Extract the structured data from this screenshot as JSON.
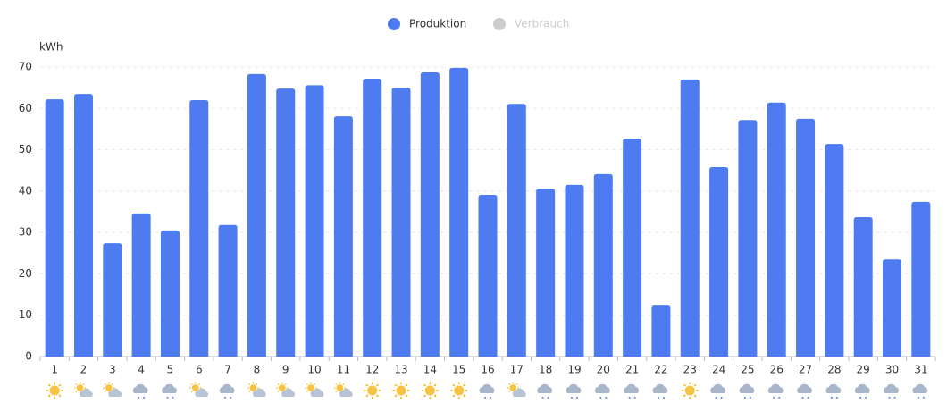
{
  "chart_data": {
    "type": "bar",
    "y_label": "kWh",
    "categories": [
      "1",
      "2",
      "3",
      "4",
      "5",
      "6",
      "7",
      "8",
      "9",
      "10",
      "11",
      "12",
      "13",
      "14",
      "15",
      "16",
      "17",
      "18",
      "19",
      "20",
      "21",
      "22",
      "23",
      "24",
      "25",
      "26",
      "27",
      "28",
      "29",
      "30",
      "31"
    ],
    "series": [
      {
        "name": "Produktion",
        "color": "#4e7cf0",
        "values": [
          62.2,
          63.5,
          27.4,
          34.6,
          30.5,
          62.0,
          31.8,
          68.3,
          64.8,
          65.6,
          58.1,
          67.2,
          65.0,
          68.7,
          69.8,
          39.1,
          61.1,
          40.6,
          41.5,
          44.1,
          52.7,
          12.5,
          67.0,
          45.8,
          57.2,
          61.4,
          57.5,
          51.4,
          33.7,
          23.5,
          37.4
        ]
      }
    ],
    "inactive_series": [
      {
        "name": "Verbrauch",
        "color": "#cccccc"
      }
    ],
    "weather": [
      "sun",
      "partly",
      "partly",
      "rain",
      "rain",
      "partly",
      "rain",
      "partly",
      "partly",
      "partly",
      "partly",
      "sun",
      "sun",
      "sun",
      "sun",
      "rain",
      "partly",
      "rain",
      "rain",
      "rain",
      "rain",
      "rain",
      "sun",
      "rain",
      "rain",
      "rain",
      "rain",
      "rain",
      "rain",
      "rain",
      "rain"
    ],
    "ylim": [
      0,
      70
    ],
    "yticks": [
      0,
      10,
      20,
      30,
      40,
      50,
      60,
      70
    ],
    "grid": true,
    "legend": "top"
  }
}
